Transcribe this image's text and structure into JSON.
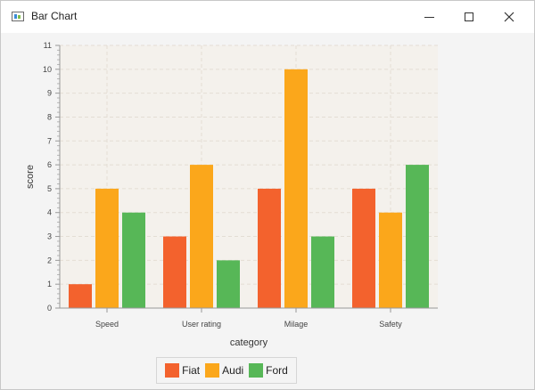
{
  "window": {
    "title": "Bar Chart",
    "controls": {
      "minimize": "minimize",
      "maximize": "maximize",
      "close": "close"
    }
  },
  "colors": {
    "Fiat": "#f3622d",
    "Audi": "#fba71b",
    "Ford": "#57b757"
  },
  "chart_data": {
    "type": "bar",
    "title": "",
    "xlabel": "category",
    "ylabel": "score",
    "ylim": [
      0,
      11
    ],
    "yticks": [
      0,
      1,
      2,
      3,
      4,
      5,
      6,
      7,
      8,
      9,
      10,
      11
    ],
    "grid": true,
    "legend_position": "bottom",
    "categories": [
      "Speed",
      "User rating",
      "Milage",
      "Safety"
    ],
    "series": [
      {
        "name": "Fiat",
        "values": [
          1,
          3,
          5,
          5
        ]
      },
      {
        "name": "Audi",
        "values": [
          5,
          6,
          10,
          4
        ]
      },
      {
        "name": "Ford",
        "values": [
          4,
          2,
          3,
          6
        ]
      }
    ]
  }
}
